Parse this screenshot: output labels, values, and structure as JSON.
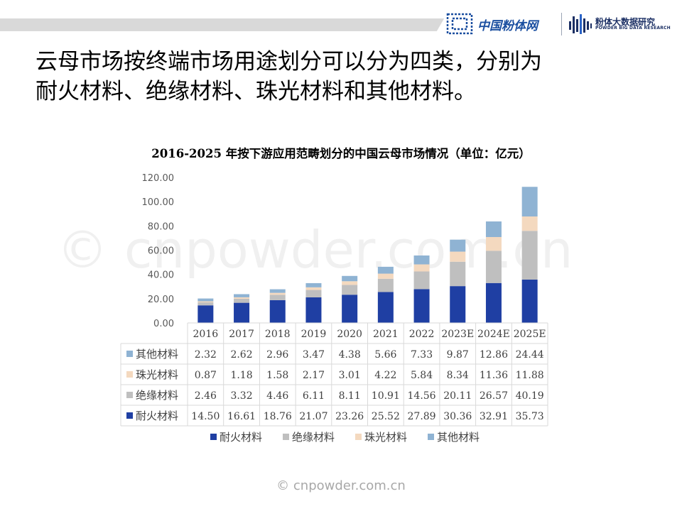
{
  "header": {
    "logo1_text": "中国粉体网",
    "logo2_cn": "粉体大数据研究",
    "logo2_en": "POWDER BIG DATA RESEARCH"
  },
  "headline": {
    "line1": "云母市场按终端市场用途划分可以分为四类，分别为",
    "line2": "耐火材料、绝缘材料、珠光材料和其他材料。"
  },
  "watermark": "© cnpowder.com.cn",
  "footer_watermark": "© cnpowder.com.cn",
  "colors": {
    "耐火材料": "#1f3fa3",
    "绝缘材料": "#bfbfbf",
    "珠光材料": "#f4d9bf",
    "其他材料": "#8fb3d3"
  },
  "chart_data": {
    "type": "bar",
    "stacked": true,
    "title": "2016-2025 年按下游应用范畴划分的中国云母市场情况（单位：亿元）",
    "categories": [
      "2016",
      "2017",
      "2018",
      "2019",
      "2020",
      "2021",
      "2022",
      "2023E",
      "2024E",
      "2025E"
    ],
    "ylim": [
      0,
      120
    ],
    "yticks": [
      "0.00",
      "20.00",
      "40.00",
      "60.00",
      "80.00",
      "100.00",
      "120.00"
    ],
    "grid": false,
    "legend_position": "bottom",
    "data_table": true,
    "series": [
      {
        "name": "耐火材料",
        "values": [
          14.5,
          16.61,
          18.76,
          21.07,
          23.26,
          25.52,
          27.89,
          30.36,
          32.91,
          35.73
        ],
        "labels": [
          "14.50",
          "16.61",
          "18.76",
          "21.07",
          "23.26",
          "25.52",
          "27.89",
          "30.36",
          "32.91",
          "35.73"
        ]
      },
      {
        "name": "绝缘材料",
        "values": [
          2.46,
          3.32,
          4.46,
          6.11,
          8.11,
          10.91,
          14.56,
          20.11,
          26.57,
          40.19
        ],
        "labels": [
          "2.46",
          "3.32",
          "4.46",
          "6.11",
          "8.11",
          "10.91",
          "14.56",
          "20.11",
          "26.57",
          "40.19"
        ]
      },
      {
        "name": "珠光材料",
        "values": [
          0.87,
          1.18,
          1.58,
          2.17,
          3.01,
          4.22,
          5.84,
          8.34,
          11.36,
          11.88
        ],
        "labels": [
          "0.87",
          "1.18",
          "1.58",
          "2.17",
          "3.01",
          "4.22",
          "5.84",
          "8.34",
          "11.36",
          "11.88"
        ]
      },
      {
        "name": "其他材料",
        "values": [
          2.32,
          2.62,
          2.96,
          3.47,
          4.38,
          5.66,
          7.33,
          9.87,
          12.86,
          24.44
        ],
        "labels": [
          "2.32",
          "2.62",
          "2.96",
          "3.47",
          "4.38",
          "5.66",
          "7.33",
          "9.87",
          "12.86",
          "24.44"
        ]
      }
    ]
  }
}
